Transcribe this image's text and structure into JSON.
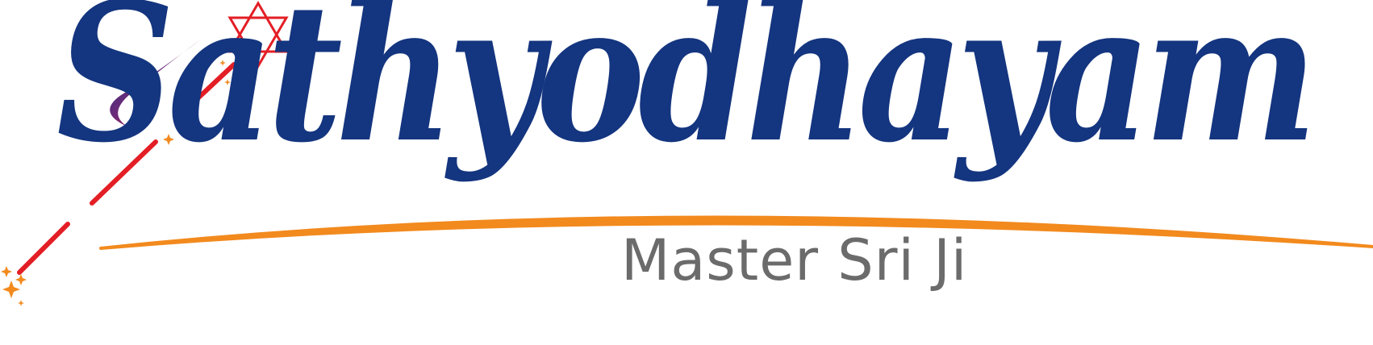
{
  "logo": {
    "wordmark": "Sathyodhayam",
    "tagline": "Master Sri Ji",
    "icons": [
      "star-of-david-icon",
      "sparkle-icon",
      "comet-streak-icon",
      "arc-swoosh-icon"
    ]
  },
  "colors": {
    "wordmark": "#14357f",
    "tagline": "#6b6b6b",
    "star": "#e31e25",
    "streak": "#e31e25",
    "swoosh": "#f28a1e",
    "sparkle": "#f28a1e"
  }
}
